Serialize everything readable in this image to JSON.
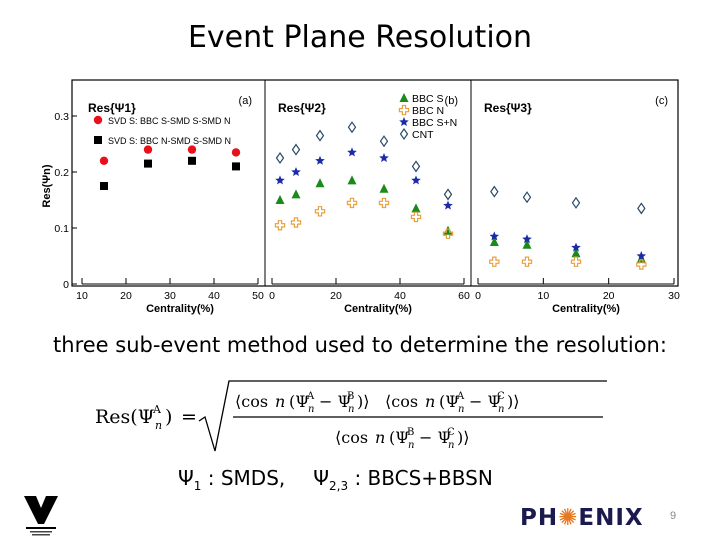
{
  "slide": {
    "title": "Event Plane Resolution",
    "caption": "three sub-event method used to determine the resolution:",
    "psi1_label": "1",
    "psi1_desc": " : SMDS,",
    "psi23_label": "2,3",
    "psi23_desc": " : BBCS+BBSN",
    "psi_symbol": "Ψ",
    "logo_text": "PH",
    "logo_text2": "ENIX",
    "page_number": "9"
  },
  "formula": {
    "lhs_res": "Res",
    "psi": "Ψ",
    "sub_n": "n",
    "sup_a": "A",
    "sup_b": "B",
    "sup_c": "C",
    "cos": "cos",
    "eq": "="
  },
  "chart_data": [
    {
      "type": "scatter",
      "panel_label": "(a)",
      "title": "Res{Ψ1}",
      "ylabel": "Res(Ψn)",
      "xlabel": "Centrality(%)",
      "xlim": [
        10,
        50
      ],
      "ylim": [
        0,
        0.35
      ],
      "xticks": [
        10,
        20,
        30,
        40,
        50
      ],
      "yticks": [
        0,
        0.1,
        0.2,
        0.3
      ],
      "ytick_labels": [
        "0",
        "0.1",
        "0.2",
        "0.3"
      ],
      "legend_position": "top",
      "series": [
        {
          "name": "SVD S: BBC S-SMD S-SMD N",
          "marker": "circle",
          "color": "#e8101a",
          "x": [
            15,
            25,
            35,
            45
          ],
          "y": [
            0.22,
            0.24,
            0.24,
            0.235
          ]
        },
        {
          "name": "SVD S: BBC N-SMD S-SMD N",
          "marker": "square",
          "color": "#000000",
          "x": [
            15,
            25,
            35,
            45
          ],
          "y": [
            0.175,
            0.215,
            0.22,
            0.21
          ]
        }
      ]
    },
    {
      "type": "scatter",
      "panel_label": "(b)",
      "title": "Res{Ψ2}",
      "xlabel": "Centrality(%)",
      "xlim": [
        0,
        60
      ],
      "ylim": [
        0,
        0.35
      ],
      "xticks": [
        0,
        20,
        40,
        60
      ],
      "xtick_labels": [
        "0",
        "20",
        "40",
        "60"
      ],
      "legend_position": "top-right",
      "series": [
        {
          "name": "BBC S",
          "marker": "triangle",
          "color": "#1a8a1a",
          "x": [
            2.5,
            7.5,
            15,
            25,
            35,
            45,
            55
          ],
          "y": [
            0.15,
            0.16,
            0.18,
            0.185,
            0.17,
            0.135,
            0.095
          ]
        },
        {
          "name": "BBC N",
          "marker": "cross",
          "color": "#e8a040",
          "x": [
            2.5,
            7.5,
            15,
            25,
            35,
            45,
            55
          ],
          "y": [
            0.105,
            0.11,
            0.13,
            0.145,
            0.145,
            0.12,
            0.09
          ]
        },
        {
          "name": "BBC S+N",
          "marker": "star",
          "color": "#1a2aa8",
          "x": [
            2.5,
            7.5,
            15,
            25,
            35,
            45,
            55
          ],
          "y": [
            0.185,
            0.2,
            0.22,
            0.235,
            0.225,
            0.185,
            0.14
          ]
        },
        {
          "name": "CNT",
          "marker": "diamond",
          "color": "#2a4a6a",
          "x": [
            2.5,
            7.5,
            15,
            25,
            35,
            45,
            55
          ],
          "y": [
            0.225,
            0.24,
            0.265,
            0.28,
            0.255,
            0.21,
            0.16
          ]
        }
      ]
    },
    {
      "type": "scatter",
      "panel_label": "(c)",
      "title": "Res{Ψ3}",
      "xlabel": "Centrality(%)",
      "xlim": [
        0,
        30
      ],
      "ylim": [
        0,
        0.35
      ],
      "xticks": [
        0,
        10,
        20,
        30
      ],
      "xtick_labels": [
        "0",
        "10",
        "20",
        "30"
      ],
      "series": [
        {
          "name": "BBC S",
          "marker": "triangle",
          "color": "#1a8a1a",
          "x": [
            2.5,
            7.5,
            15,
            25
          ],
          "y": [
            0.075,
            0.07,
            0.055,
            0.045
          ]
        },
        {
          "name": "BBC N",
          "marker": "cross",
          "color": "#e8a040",
          "x": [
            2.5,
            7.5,
            15,
            25
          ],
          "y": [
            0.04,
            0.04,
            0.04,
            0.035
          ]
        },
        {
          "name": "BBC S+N",
          "marker": "star",
          "color": "#1a2aa8",
          "x": [
            2.5,
            7.5,
            15,
            25
          ],
          "y": [
            0.085,
            0.08,
            0.065,
            0.05
          ]
        },
        {
          "name": "CNT",
          "marker": "diamond",
          "color": "#2a4a6a",
          "x": [
            2.5,
            7.5,
            15,
            25
          ],
          "y": [
            0.165,
            0.155,
            0.145,
            0.135
          ]
        }
      ]
    }
  ]
}
